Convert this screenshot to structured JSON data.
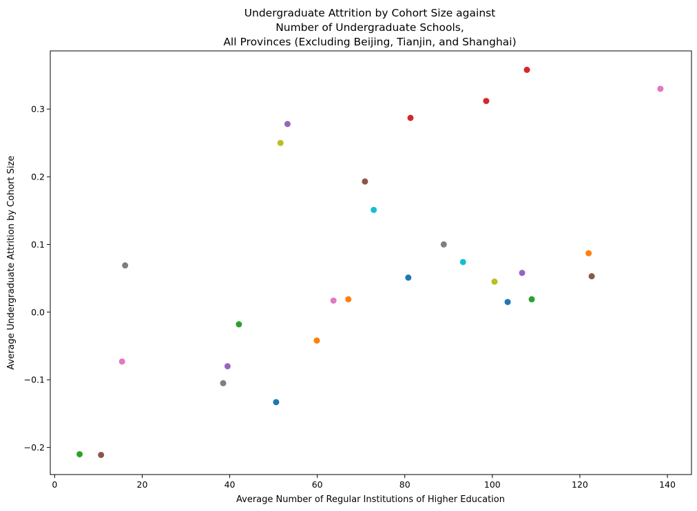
{
  "chart_data": {
    "type": "scatter",
    "title_lines": [
      "Undergraduate Attrition by Cohort Size against",
      "Number of Undergraduate Schools,",
      "All Provinces (Excluding Beijing, Tianjin, and Shanghai)"
    ],
    "xlabel": "Average Number of Regular Institutions of Higher Education",
    "ylabel": "Average Undergraduate Attrition by Cohort Size",
    "xlim": [
      -1,
      145.5
    ],
    "ylim": [
      -0.24,
      0.386
    ],
    "x_ticks": [
      0,
      20,
      40,
      60,
      80,
      100,
      120,
      140
    ],
    "x_tick_labels": [
      "0",
      "20",
      "40",
      "60",
      "80",
      "100",
      "120",
      "140"
    ],
    "y_ticks": [
      -0.2,
      -0.1,
      0.0,
      0.1,
      0.2,
      0.3
    ],
    "y_tick_labels": [
      "−0.2",
      "−0.1",
      "0.0",
      "0.1",
      "0.2",
      "0.3"
    ],
    "grid": false,
    "legend": "none",
    "points": [
      {
        "x": 5.7,
        "y": -0.21,
        "color": "#2ca02c"
      },
      {
        "x": 10.6,
        "y": -0.211,
        "color": "#8c564b"
      },
      {
        "x": 15.4,
        "y": -0.073,
        "color": "#e377c2"
      },
      {
        "x": 16.1,
        "y": 0.069,
        "color": "#7f7f7f"
      },
      {
        "x": 38.5,
        "y": -0.105,
        "color": "#7f7f7f"
      },
      {
        "x": 39.5,
        "y": -0.08,
        "color": "#9467bd"
      },
      {
        "x": 42.1,
        "y": -0.018,
        "color": "#2ca02c"
      },
      {
        "x": 50.6,
        "y": -0.133,
        "color": "#1f77b4"
      },
      {
        "x": 51.6,
        "y": 0.25,
        "color": "#bcbd22"
      },
      {
        "x": 53.2,
        "y": 0.278,
        "color": "#9467bd"
      },
      {
        "x": 59.9,
        "y": -0.042,
        "color": "#ff7f0e"
      },
      {
        "x": 63.7,
        "y": 0.017,
        "color": "#e377c2"
      },
      {
        "x": 67.1,
        "y": 0.019,
        "color": "#ff7f0e"
      },
      {
        "x": 70.9,
        "y": 0.193,
        "color": "#8c564b"
      },
      {
        "x": 72.9,
        "y": 0.151,
        "color": "#17becf"
      },
      {
        "x": 80.8,
        "y": 0.051,
        "color": "#1f77b4"
      },
      {
        "x": 81.3,
        "y": 0.287,
        "color": "#d62728"
      },
      {
        "x": 88.9,
        "y": 0.1,
        "color": "#7f7f7f"
      },
      {
        "x": 93.3,
        "y": 0.074,
        "color": "#17becf"
      },
      {
        "x": 98.6,
        "y": 0.312,
        "color": "#d62728"
      },
      {
        "x": 100.5,
        "y": 0.045,
        "color": "#bcbd22"
      },
      {
        "x": 103.5,
        "y": 0.015,
        "color": "#1f77b4"
      },
      {
        "x": 106.8,
        "y": 0.058,
        "color": "#9467bd"
      },
      {
        "x": 107.9,
        "y": 0.358,
        "color": "#d62728"
      },
      {
        "x": 109.0,
        "y": 0.019,
        "color": "#2ca02c"
      },
      {
        "x": 122.0,
        "y": 0.087,
        "color": "#ff7f0e"
      },
      {
        "x": 122.7,
        "y": 0.053,
        "color": "#8c564b"
      },
      {
        "x": 138.4,
        "y": 0.33,
        "color": "#e377c2"
      }
    ]
  }
}
